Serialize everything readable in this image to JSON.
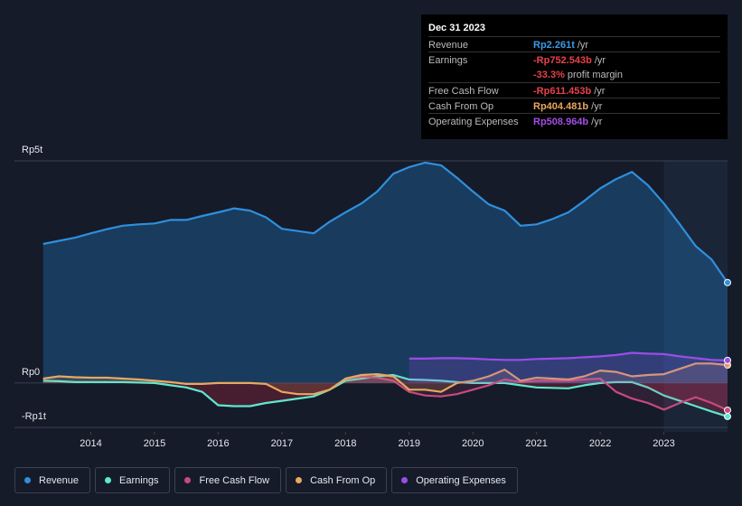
{
  "chart_data": {
    "type": "line",
    "x": [
      2013.25,
      2013.5,
      2013.75,
      2014.0,
      2014.25,
      2014.5,
      2014.75,
      2015.0,
      2015.25,
      2015.5,
      2015.75,
      2016.0,
      2016.25,
      2016.5,
      2016.75,
      2017.0,
      2017.25,
      2017.5,
      2017.75,
      2018.0,
      2018.25,
      2018.5,
      2018.75,
      2019.0,
      2019.25,
      2019.5,
      2019.75,
      2020.0,
      2020.25,
      2020.5,
      2020.75,
      2021.0,
      2021.25,
      2021.5,
      2021.75,
      2022.0,
      2022.25,
      2022.5,
      2022.75,
      2023.0,
      2023.25,
      2023.5,
      2023.75,
      2024.0
    ],
    "xlim": [
      2012.8,
      2024.0
    ],
    "xticks": [
      2014,
      2015,
      2016,
      2017,
      2018,
      2019,
      2020,
      2021,
      2022,
      2023
    ],
    "ylim": [
      -1.1,
      5
    ],
    "yticks": [
      {
        "value": 5,
        "label": "Rp5t"
      },
      {
        "value": 0,
        "label": "Rp0"
      },
      {
        "value": -1,
        "label": "-Rp1t"
      }
    ],
    "grid": true,
    "series": [
      {
        "name": "Revenue",
        "color": "#2f8fdc",
        "values": [
          3.13,
          3.2,
          3.27,
          3.37,
          3.46,
          3.54,
          3.57,
          3.59,
          3.67,
          3.67,
          3.76,
          3.84,
          3.93,
          3.88,
          3.73,
          3.47,
          3.42,
          3.37,
          3.63,
          3.84,
          4.04,
          4.31,
          4.71,
          4.86,
          4.96,
          4.9,
          4.62,
          4.31,
          4.02,
          3.88,
          3.54,
          3.57,
          3.69,
          3.84,
          4.1,
          4.38,
          4.59,
          4.75,
          4.45,
          4.04,
          3.57,
          3.08,
          2.78,
          2.261
        ]
      },
      {
        "name": "Earnings",
        "color": "#5ee8d0",
        "values": [
          0.05,
          0.04,
          0.02,
          0.02,
          0.02,
          0.02,
          0.01,
          0.0,
          -0.05,
          -0.1,
          -0.2,
          -0.5,
          -0.52,
          -0.52,
          -0.45,
          -0.4,
          -0.35,
          -0.3,
          -0.15,
          0.05,
          0.1,
          0.15,
          0.18,
          0.08,
          0.07,
          0.05,
          0.02,
          0.0,
          0.0,
          0.0,
          -0.05,
          -0.1,
          -0.11,
          -0.12,
          -0.05,
          0.0,
          0.02,
          0.02,
          -0.1,
          -0.28,
          -0.4,
          -0.52,
          -0.64,
          -0.7525
        ]
      },
      {
        "name": "Free Cash Flow",
        "color": "#c84a7e",
        "values": [
          null,
          null,
          null,
          null,
          null,
          null,
          null,
          null,
          null,
          null,
          null,
          null,
          null,
          null,
          null,
          null,
          null,
          null,
          null,
          0.1,
          0.15,
          0.12,
          0.05,
          -0.2,
          -0.28,
          -0.3,
          -0.25,
          -0.15,
          -0.05,
          0.08,
          0.02,
          0.05,
          0.05,
          0.05,
          0.08,
          0.1,
          -0.2,
          -0.35,
          -0.45,
          -0.6,
          -0.45,
          -0.32,
          -0.45,
          -0.6115
        ]
      },
      {
        "name": "Cash From Op",
        "color": "#e8a860",
        "values": [
          0.1,
          0.15,
          0.13,
          0.12,
          0.12,
          0.1,
          0.08,
          0.05,
          0.02,
          -0.02,
          -0.02,
          0.0,
          0.0,
          0.0,
          -0.02,
          -0.2,
          -0.25,
          -0.25,
          -0.15,
          0.1,
          0.18,
          0.2,
          0.15,
          -0.15,
          -0.15,
          -0.2,
          0.0,
          0.05,
          0.15,
          0.3,
          0.05,
          0.12,
          0.1,
          0.08,
          0.15,
          0.28,
          0.25,
          0.15,
          0.18,
          0.2,
          0.32,
          0.44,
          0.44,
          0.4045
        ]
      },
      {
        "name": "Operating Expenses",
        "color": "#9b4de8",
        "values": [
          null,
          null,
          null,
          null,
          null,
          null,
          null,
          null,
          null,
          null,
          null,
          null,
          null,
          null,
          null,
          null,
          null,
          null,
          null,
          null,
          null,
          null,
          null,
          0.55,
          0.55,
          0.56,
          0.56,
          0.55,
          0.53,
          0.52,
          0.52,
          0.54,
          0.55,
          0.56,
          0.58,
          0.6,
          0.63,
          0.68,
          0.66,
          0.65,
          0.6,
          0.56,
          0.52,
          0.509
        ]
      }
    ]
  },
  "tooltip": {
    "date": "Dec 31 2023",
    "rows": [
      {
        "label": "Revenue",
        "value": "Rp2.261t",
        "unit": "/yr",
        "color": "#3b9be6"
      },
      {
        "label": "Earnings",
        "value": "-Rp752.543b",
        "unit": "/yr",
        "color": "#e8424b"
      },
      {
        "label": "Free Cash Flow",
        "value": "-Rp611.453b",
        "unit": "/yr",
        "color": "#e8424b"
      },
      {
        "label": "Cash From Op",
        "value": "Rp404.481b",
        "unit": "/yr",
        "color": "#e8a860"
      },
      {
        "label": "Operating Expenses",
        "value": "Rp508.964b",
        "unit": "/yr",
        "color": "#a24de6"
      }
    ],
    "margin": {
      "value": "-33.3%",
      "text": "profit margin",
      "color": "#e8424b"
    }
  }
}
